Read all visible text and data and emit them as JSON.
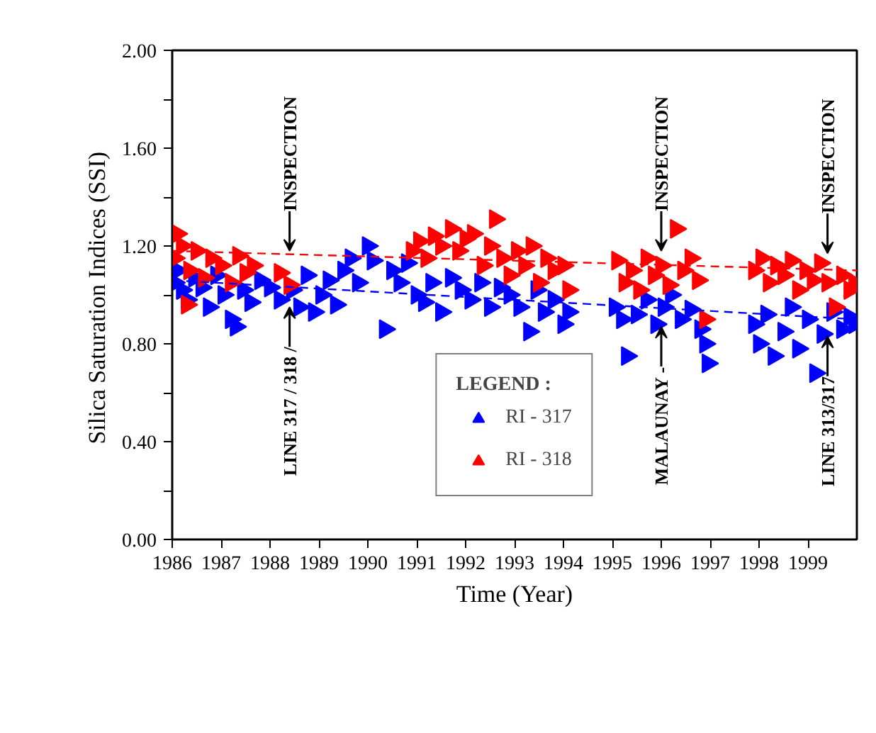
{
  "chart_data": {
    "type": "scatter",
    "xlabel": "Time (Year)",
    "ylabel": "Silica Saturation Indices  (SSI)",
    "legend_title": "LEGEND :",
    "xlim": [
      1986,
      2000
    ],
    "xticks": [
      1986,
      1987,
      1988,
      1989,
      1990,
      1991,
      1992,
      1993,
      1994,
      1995,
      1996,
      1997,
      1998,
      1999
    ],
    "ylim": [
      0,
      2
    ],
    "yticks": [
      {
        "value": 0,
        "label": "0.00"
      },
      {
        "value": 0.2,
        "label": null
      },
      {
        "value": 0.4,
        "label": "0.40"
      },
      {
        "value": 0.6,
        "label": null
      },
      {
        "value": 0.8,
        "label": "0.80"
      },
      {
        "value": 1.0,
        "label": null
      },
      {
        "value": 1.2,
        "label": "1.20"
      },
      {
        "value": 1.4,
        "label": null
      },
      {
        "value": 1.6,
        "label": "1.60"
      },
      {
        "value": 1.8,
        "label": null
      },
      {
        "value": 2.0,
        "label": "2.00"
      }
    ],
    "grid": false,
    "legend": "bottom",
    "series": [
      {
        "name": "RI - 317",
        "color": "#0000ff",
        "marker": "triangle",
        "x": [
          1986.05,
          1986.1,
          1986.2,
          1986.3,
          1986.45,
          1986.6,
          1986.75,
          1986.9,
          1987.05,
          1987.2,
          1987.3,
          1987.45,
          1987.6,
          1987.8,
          1988.0,
          1988.2,
          1988.45,
          1988.6,
          1988.75,
          1988.9,
          1989.05,
          1989.2,
          1989.35,
          1989.5,
          1989.65,
          1989.8,
          1990.0,
          1990.1,
          1990.35,
          1990.5,
          1990.65,
          1990.8,
          1991.0,
          1991.15,
          1991.3,
          1991.5,
          1991.7,
          1991.9,
          1992.1,
          1992.3,
          1992.5,
          1992.7,
          1992.9,
          1993.1,
          1993.3,
          1993.45,
          1993.6,
          1993.8,
          1994.0,
          1994.1,
          1995.05,
          1995.2,
          1995.3,
          1995.5,
          1995.7,
          1995.9,
          1996.05,
          1996.2,
          1996.4,
          1996.6,
          1996.8,
          1996.9,
          1996.95,
          1997.9,
          1998.0,
          1998.15,
          1998.3,
          1998.5,
          1998.65,
          1998.8,
          1999.0,
          1999.15,
          1999.3,
          1999.5,
          1999.7,
          1999.85,
          1999.95
        ],
        "values": [
          1.05,
          1.1,
          1.02,
          0.98,
          1.07,
          1.03,
          0.95,
          1.08,
          1.0,
          0.9,
          0.87,
          1.02,
          0.97,
          1.06,
          1.03,
          0.98,
          1.02,
          0.95,
          1.08,
          0.93,
          1.0,
          1.06,
          0.96,
          1.1,
          1.15,
          1.05,
          1.2,
          1.14,
          0.86,
          1.1,
          1.05,
          1.13,
          1.0,
          0.97,
          1.05,
          0.93,
          1.07,
          1.02,
          0.98,
          1.05,
          0.95,
          1.03,
          1.0,
          0.95,
          0.85,
          1.02,
          0.93,
          0.98,
          0.88,
          0.93,
          0.95,
          0.9,
          0.75,
          0.92,
          0.98,
          0.88,
          0.95,
          1.0,
          0.9,
          0.94,
          0.86,
          0.8,
          0.72,
          0.88,
          0.8,
          0.92,
          0.75,
          0.85,
          0.95,
          0.78,
          0.9,
          0.68,
          0.84,
          0.93,
          0.86,
          0.91,
          0.88
        ]
      },
      {
        "name": "RI - 318",
        "color": "#ff0000",
        "marker": "triangle",
        "x": [
          1986.05,
          1986.1,
          1986.2,
          1986.3,
          1986.35,
          1986.5,
          1986.65,
          1986.8,
          1987.0,
          1987.2,
          1987.35,
          1987.5,
          1987.65,
          1988.2,
          1988.4,
          1990.9,
          1991.05,
          1991.2,
          1991.35,
          1991.5,
          1991.7,
          1991.85,
          1992.0,
          1992.15,
          1992.35,
          1992.5,
          1992.6,
          1992.75,
          1992.9,
          1993.05,
          1993.2,
          1993.35,
          1993.5,
          1993.65,
          1993.8,
          1994.0,
          1994.1,
          1995.1,
          1995.25,
          1995.4,
          1995.55,
          1995.7,
          1995.85,
          1996.0,
          1996.15,
          1996.3,
          1996.45,
          1996.6,
          1996.75,
          1996.9,
          1997.9,
          1998.05,
          1998.2,
          1998.35,
          1998.5,
          1998.65,
          1998.8,
          1998.95,
          1999.1,
          1999.25,
          1999.4,
          1999.55,
          1999.7,
          1999.85,
          1999.95
        ],
        "values": [
          1.15,
          1.25,
          1.2,
          0.96,
          1.1,
          1.18,
          1.07,
          1.15,
          1.12,
          1.05,
          1.16,
          1.09,
          1.12,
          1.09,
          1.04,
          1.18,
          1.22,
          1.15,
          1.24,
          1.2,
          1.27,
          1.18,
          1.23,
          1.25,
          1.12,
          1.2,
          1.31,
          1.15,
          1.08,
          1.18,
          1.12,
          1.2,
          1.05,
          1.15,
          1.1,
          1.12,
          1.02,
          1.14,
          1.05,
          1.1,
          1.02,
          1.15,
          1.08,
          1.12,
          1.04,
          1.27,
          1.1,
          1.15,
          1.06,
          0.9,
          1.1,
          1.15,
          1.05,
          1.12,
          1.08,
          1.14,
          1.02,
          1.1,
          1.06,
          1.13,
          1.05,
          0.95,
          1.08,
          1.02,
          1.05
        ]
      },
      {
        "type": "line",
        "line_style": "dashed",
        "marker": "none",
        "color": "#0000ff",
        "x": [
          1986,
          2000
        ],
        "values": [
          1.06,
          0.9
        ]
      },
      {
        "type": "line",
        "line_style": "dashed",
        "marker": "none",
        "color": "#ff0000",
        "x": [
          1986,
          2000
        ],
        "values": [
          1.18,
          1.1
        ]
      }
    ],
    "annotations": [
      {
        "text": "LINE 317 / 318 /",
        "x": 1988.4,
        "y": 0.95
      },
      {
        "text": "INSPECTION",
        "x": 1988.4,
        "y": 1.18
      },
      {
        "text": "MALAUNAY -",
        "x": 1996.0,
        "y": 0.87
      },
      {
        "text": "INSPECTION",
        "x": 1996.0,
        "y": 1.18
      },
      {
        "text": "LINE 313/317",
        "x": 1999.4,
        "y": 0.83
      },
      {
        "text": "INSPECTION",
        "x": 1999.4,
        "y": 1.17
      }
    ]
  }
}
